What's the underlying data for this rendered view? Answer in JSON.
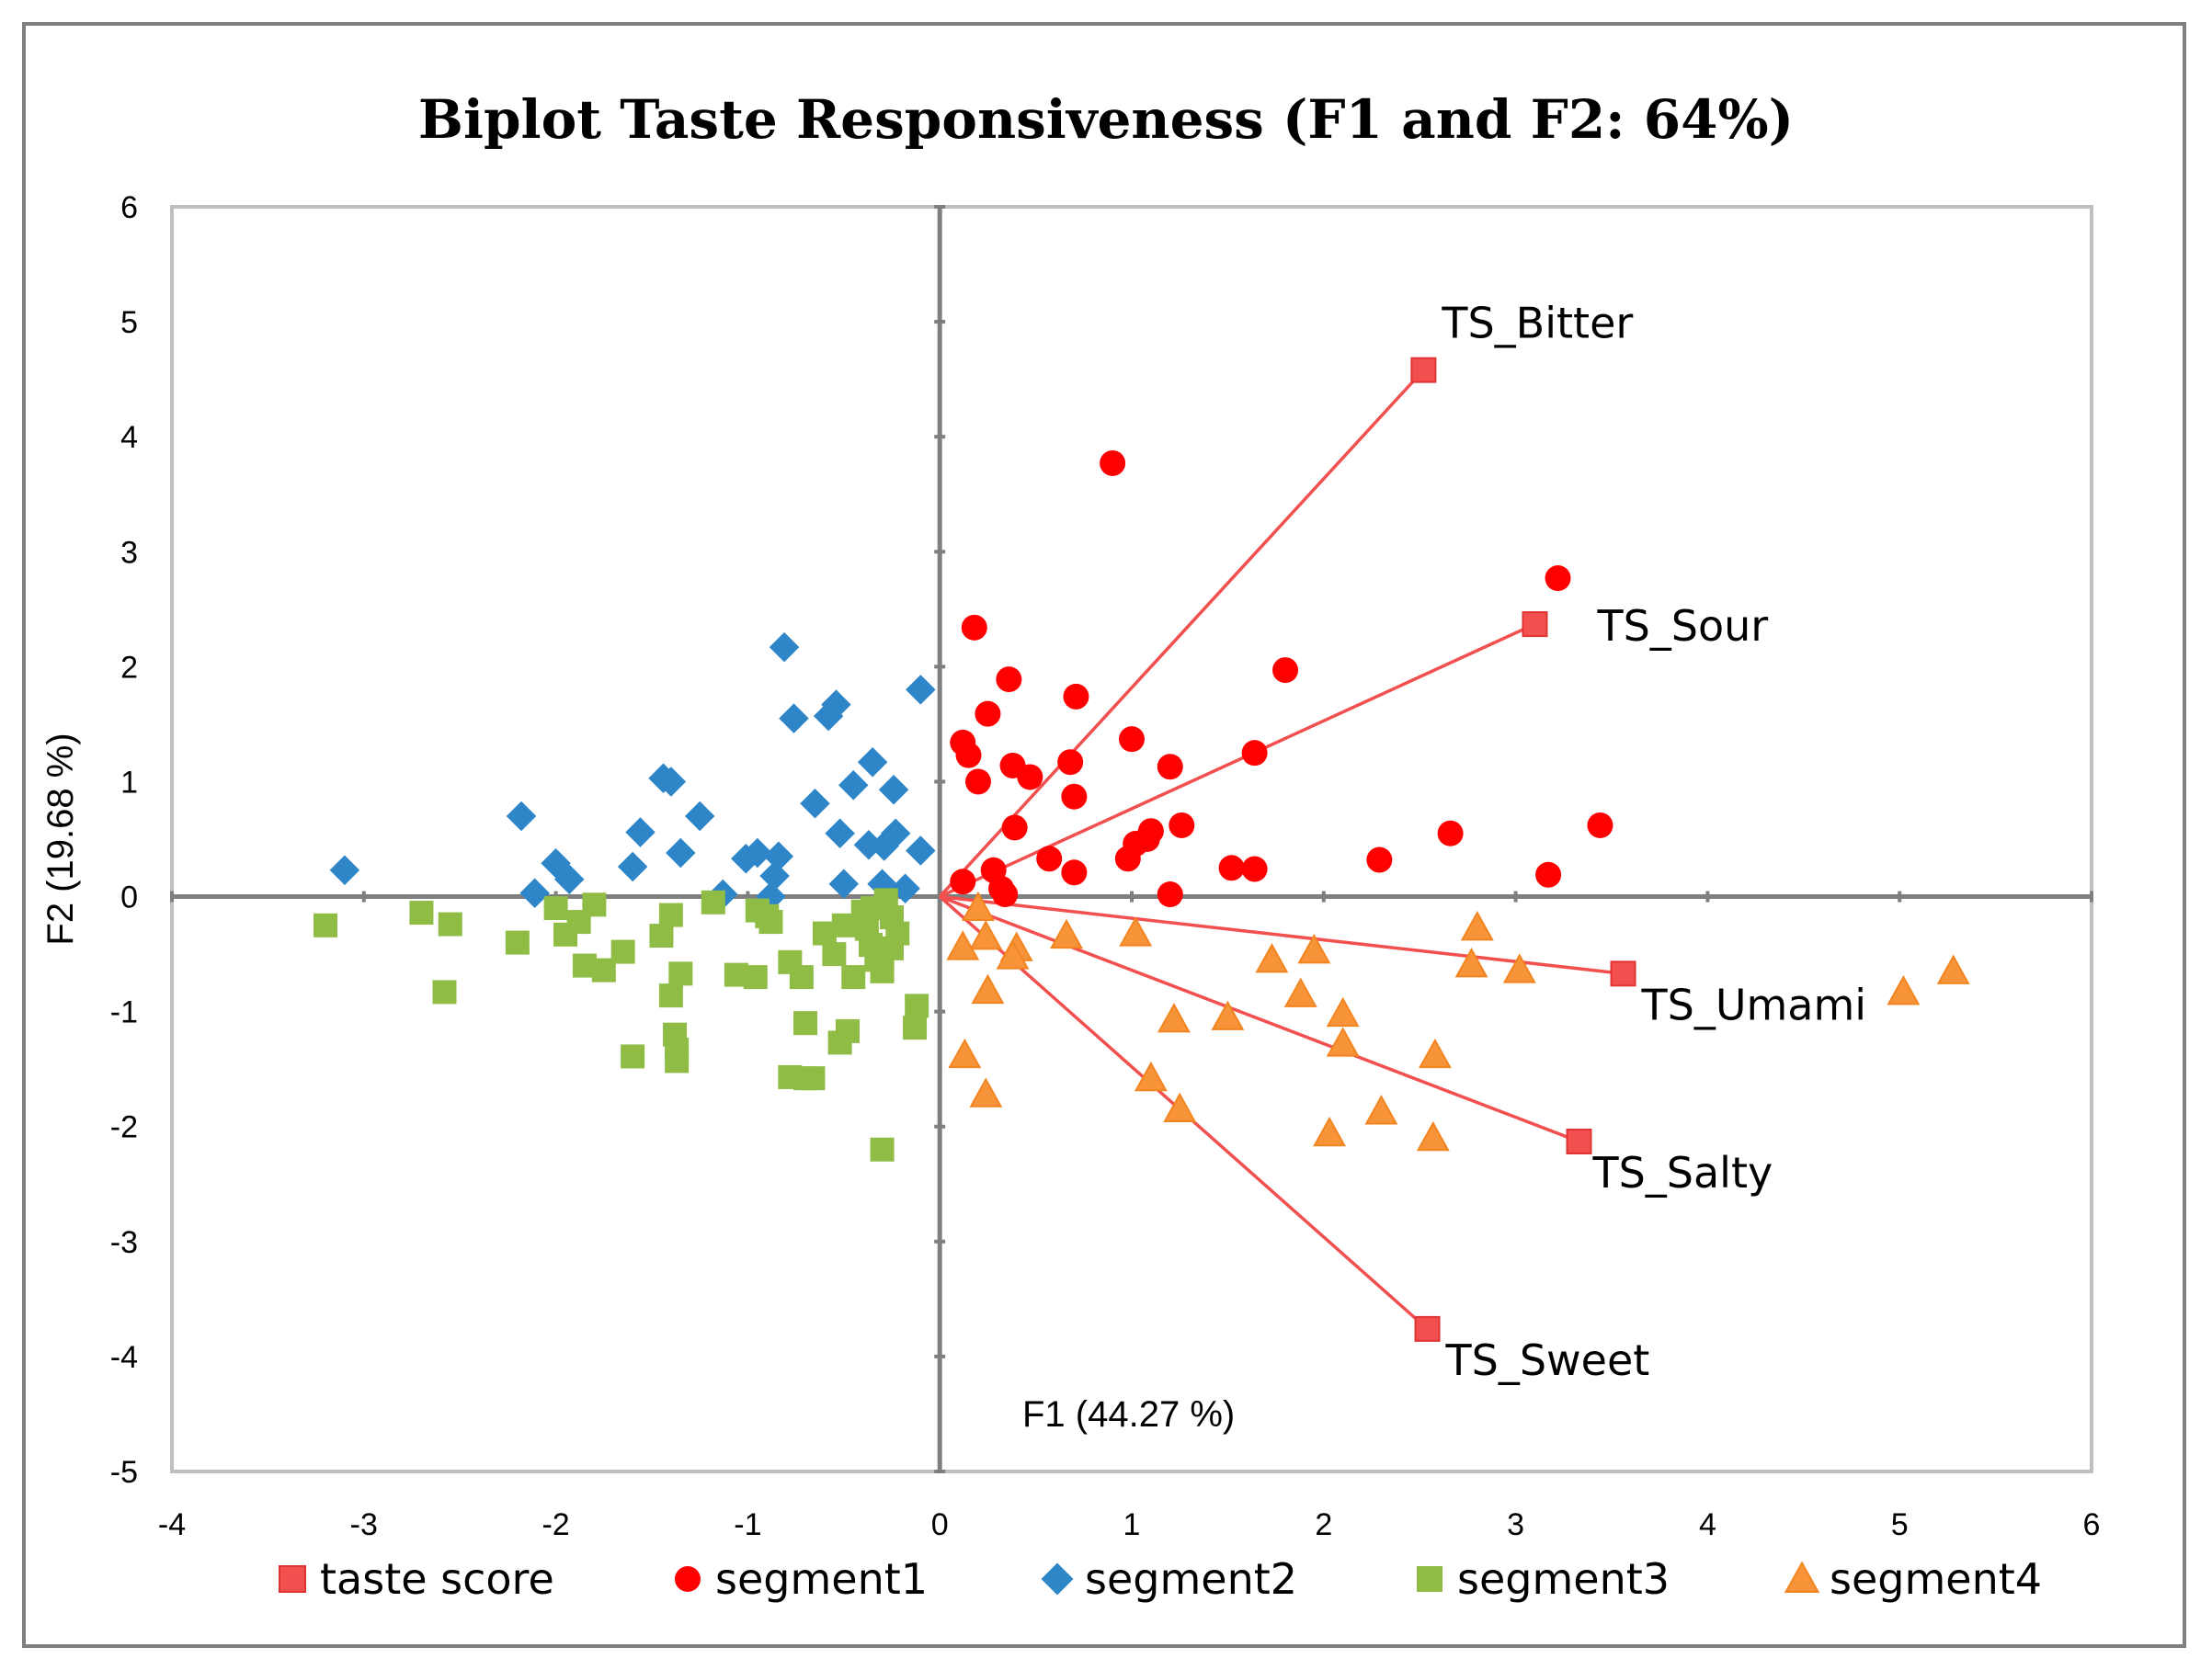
{
  "chart_data": {
    "type": "scatter",
    "title": "Biplot Taste Responsiveness (F1 and F2: 64%)",
    "xlabel": "F1 (44.27 %)",
    "ylabel": "F2 (19.68 %)",
    "xlim": [
      -4,
      6
    ],
    "ylim": [
      -5,
      6
    ],
    "xticks": [
      "-4",
      "-3",
      "-2",
      "-1",
      "0",
      "1",
      "2",
      "3",
      "4",
      "5",
      "6"
    ],
    "yticks": [
      "6",
      "5",
      "4",
      "3",
      "2",
      "1",
      "0",
      "-1",
      "-2",
      "-3",
      "-4",
      "-5"
    ],
    "grid": false,
    "legend_position": "bottom",
    "colors": {
      "taste_score": "#f24f4f",
      "segment1": "#ff0000",
      "segment2": "#2e86c8",
      "segment3": "#8fbc45",
      "segment4": "#f7943a",
      "vector": "#f24f4f",
      "axis": "#7f7f7f"
    },
    "series": [
      {
        "name": "taste score",
        "marker": "square",
        "points": [
          {
            "label": "TS_Bitter",
            "x": 2.52,
            "y": 4.58
          },
          {
            "label": "TS_Sour",
            "x": 3.1,
            "y": 2.37
          },
          {
            "label": "TS_Umami",
            "x": 3.56,
            "y": -0.67
          },
          {
            "label": "TS_Salty",
            "x": 3.33,
            "y": -2.13
          },
          {
            "label": "TS_Sweet",
            "x": 2.54,
            "y": -3.76
          }
        ]
      },
      {
        "name": "segment1",
        "marker": "circle",
        "points": [
          [
            0.9,
            3.77
          ],
          [
            3.22,
            2.77
          ],
          [
            0.18,
            2.34
          ],
          [
            1.8,
            1.97
          ],
          [
            0.36,
            1.89
          ],
          [
            0.71,
            1.74
          ],
          [
            0.25,
            1.59
          ],
          [
            0.12,
            1.34
          ],
          [
            1.0,
            1.37
          ],
          [
            0.15,
            1.23
          ],
          [
            0.68,
            1.17
          ],
          [
            0.38,
            1.14
          ],
          [
            1.2,
            1.13
          ],
          [
            1.64,
            1.25
          ],
          [
            0.47,
            1.04
          ],
          [
            0.2,
            1.0
          ],
          [
            0.7,
            0.87
          ],
          [
            0.39,
            0.6
          ],
          [
            1.1,
            0.57
          ],
          [
            1.26,
            0.62
          ],
          [
            1.08,
            0.5
          ],
          [
            1.02,
            0.46
          ],
          [
            3.44,
            0.62
          ],
          [
            2.66,
            0.55
          ],
          [
            0.57,
            0.33
          ],
          [
            0.98,
            0.33
          ],
          [
            2.29,
            0.32
          ],
          [
            1.52,
            0.25
          ],
          [
            1.64,
            0.24
          ],
          [
            0.28,
            0.23
          ],
          [
            0.7,
            0.21
          ],
          [
            3.17,
            0.19
          ],
          [
            0.12,
            0.13
          ],
          [
            0.32,
            0.07
          ],
          [
            0.34,
            0.02
          ],
          [
            1.2,
            0.02
          ]
        ]
      },
      {
        "name": "segment2",
        "marker": "diamond",
        "points": [
          [
            -0.81,
            2.17
          ],
          [
            -0.1,
            1.8
          ],
          [
            -0.54,
            1.67
          ],
          [
            -0.58,
            1.57
          ],
          [
            -0.76,
            1.55
          ],
          [
            -0.35,
            1.17
          ],
          [
            -1.44,
            1.03
          ],
          [
            -1.4,
            1.0
          ],
          [
            -0.45,
            0.97
          ],
          [
            -0.24,
            0.93
          ],
          [
            -2.18,
            0.7
          ],
          [
            -1.25,
            0.7
          ],
          [
            -0.65,
            0.81
          ],
          [
            -1.56,
            0.56
          ],
          [
            -0.52,
            0.55
          ],
          [
            -0.23,
            0.55
          ],
          [
            -0.37,
            0.45
          ],
          [
            -0.29,
            0.44
          ],
          [
            -0.1,
            0.4
          ],
          [
            -1.35,
            0.38
          ],
          [
            -0.95,
            0.38
          ],
          [
            -1.01,
            0.33
          ],
          [
            -0.84,
            0.35
          ],
          [
            -2.0,
            0.29
          ],
          [
            -1.6,
            0.26
          ],
          [
            -3.1,
            0.23
          ],
          [
            -1.93,
            0.15
          ],
          [
            -0.86,
            0.18
          ],
          [
            -0.5,
            0.11
          ],
          [
            -0.3,
            0.11
          ],
          [
            -0.18,
            0.07
          ],
          [
            -2.11,
            0.03
          ],
          [
            -1.13,
            0.02
          ],
          [
            -0.88,
            0.0
          ]
        ]
      },
      {
        "name": "segment3",
        "marker": "square",
        "points": [
          [
            -3.2,
            -0.25
          ],
          [
            -2.7,
            -0.14
          ],
          [
            -2.55,
            -0.24
          ],
          [
            -2.58,
            -0.83
          ],
          [
            -2.2,
            -0.4
          ],
          [
            -2.0,
            -0.1
          ],
          [
            -1.95,
            -0.33
          ],
          [
            -1.88,
            -0.22
          ],
          [
            -1.8,
            -0.07
          ],
          [
            -1.85,
            -0.6
          ],
          [
            -1.75,
            -0.64
          ],
          [
            -1.65,
            -0.48
          ],
          [
            -1.6,
            -1.39
          ],
          [
            -1.45,
            -0.34
          ],
          [
            -1.4,
            -0.16
          ],
          [
            -1.35,
            -0.67
          ],
          [
            -1.4,
            -0.86
          ],
          [
            -1.38,
            -1.2
          ],
          [
            -1.37,
            -1.33
          ],
          [
            -1.37,
            -1.43
          ],
          [
            -1.18,
            -0.05
          ],
          [
            -1.06,
            -0.68
          ],
          [
            -0.96,
            -0.7
          ],
          [
            -0.95,
            -0.12
          ],
          [
            -0.9,
            -0.17
          ],
          [
            -0.88,
            -0.22
          ],
          [
            -0.78,
            -0.57
          ],
          [
            -0.72,
            -0.7
          ],
          [
            -0.7,
            -1.1
          ],
          [
            -0.78,
            -1.57
          ],
          [
            -0.7,
            -1.58
          ],
          [
            -0.66,
            -1.58
          ],
          [
            -0.6,
            -0.32
          ],
          [
            -0.55,
            -0.5
          ],
          [
            -0.52,
            -1.27
          ],
          [
            -0.48,
            -1.17
          ],
          [
            -0.5,
            -0.25
          ],
          [
            -0.45,
            -0.7
          ],
          [
            -0.4,
            -0.13
          ],
          [
            -0.38,
            -0.28
          ],
          [
            -0.36,
            -0.42
          ],
          [
            -0.33,
            -0.55
          ],
          [
            -0.3,
            -0.65
          ],
          [
            -0.28,
            -0.08
          ],
          [
            -0.25,
            -0.18
          ],
          [
            -0.22,
            -0.32
          ],
          [
            -0.25,
            -0.45
          ],
          [
            -0.3,
            -2.2
          ],
          [
            -0.28,
            -0.03
          ],
          [
            -0.35,
            -0.1
          ],
          [
            -0.12,
            -0.95
          ],
          [
            -0.13,
            -1.14
          ],
          [
            -0.3,
            -0.52
          ]
        ]
      },
      {
        "name": "segment4",
        "marker": "triangle",
        "points": [
          [
            5.28,
            -0.65
          ],
          [
            5.02,
            -0.83
          ],
          [
            2.8,
            -0.27
          ],
          [
            2.77,
            -0.59
          ],
          [
            3.02,
            -0.64
          ],
          [
            1.95,
            -0.47
          ],
          [
            1.73,
            -0.55
          ],
          [
            1.02,
            -0.32
          ],
          [
            0.66,
            -0.34
          ],
          [
            0.2,
            -0.1
          ],
          [
            0.12,
            -0.44
          ],
          [
            0.4,
            -0.45
          ],
          [
            0.38,
            -0.52
          ],
          [
            0.24,
            -0.35
          ],
          [
            0.25,
            -0.82
          ],
          [
            1.88,
            -0.85
          ],
          [
            2.1,
            -1.02
          ],
          [
            1.5,
            -1.05
          ],
          [
            1.22,
            -1.07
          ],
          [
            2.1,
            -1.28
          ],
          [
            2.58,
            -1.38
          ],
          [
            0.13,
            -1.38
          ],
          [
            1.1,
            -1.58
          ],
          [
            1.25,
            -1.85
          ],
          [
            0.24,
            -1.72
          ],
          [
            2.3,
            -1.87
          ],
          [
            2.03,
            -2.06
          ],
          [
            2.57,
            -2.1
          ]
        ]
      }
    ]
  }
}
